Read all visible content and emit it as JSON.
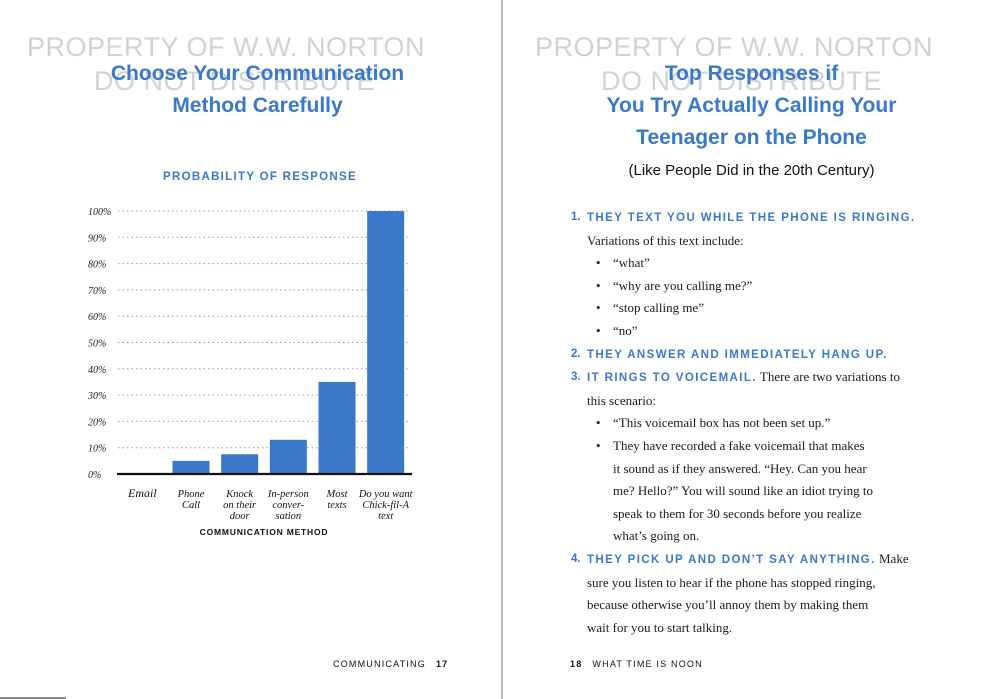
{
  "watermark": {
    "line1": "PROPERTY OF W.W. NORTON",
    "line2": "DO NOT DISTRIBUTE"
  },
  "left_page": {
    "title_line1": "Choose Your Communication",
    "title_line2": "Method Carefully",
    "footer_section": "COMMUNICATING",
    "footer_page": "17"
  },
  "chart_data": {
    "type": "bar",
    "title": "PROBABILITY OF RESPONSE",
    "xlabel": "COMMUNICATION METHOD",
    "ylabel": "",
    "categories": [
      [
        "Email"
      ],
      [
        "Phone",
        "Call"
      ],
      [
        "Knock",
        "on their",
        "door"
      ],
      [
        "In-person",
        "conver-",
        "sation"
      ],
      [
        "Most",
        "texts"
      ],
      [
        "Do you want",
        "Chick-fil-A",
        "text"
      ]
    ],
    "values": [
      0,
      5,
      7.5,
      13,
      35,
      100
    ],
    "ylim": [
      0,
      100
    ],
    "yticks": [
      "0%",
      "10%",
      "20%",
      "30%",
      "40%",
      "50%",
      "60%",
      "70%",
      "80%",
      "90%",
      "100%"
    ],
    "grid": true,
    "bar_color": "#3a78c9"
  },
  "right_page": {
    "title_line1": "Top Responses if",
    "title_line2": "You Try Actually Calling Your",
    "title_line3": "Teenager on the Phone",
    "subtitle": "(Like People Did in the 20th Century)",
    "items": [
      {
        "num": "1.",
        "head": "THEY TEXT YOU WHILE THE PHONE IS RINGING.",
        "lines": [
          "Variations of this text include:"
        ],
        "bullets": [
          [
            "“what”"
          ],
          [
            "“why are you calling me?”"
          ],
          [
            "“stop calling me”"
          ],
          [
            "“no”"
          ]
        ]
      },
      {
        "num": "2.",
        "head": "THEY ANSWER AND IMMEDIATELY HANG UP."
      },
      {
        "num": "3.",
        "head": "IT RINGS TO VOICEMAIL.",
        "tail": " There are two variations to",
        "lines": [
          "this scenario:"
        ],
        "bullets": [
          [
            "“This voicemail box has not been set up.”"
          ],
          [
            "They have recorded a fake voicemail that makes",
            "it sound as if they answered. “Hey. Can you hear",
            "me? Hello?” You will sound like an idiot trying to",
            "speak to them for 30 seconds before you realize",
            "what’s going on."
          ]
        ]
      },
      {
        "num": "4.",
        "head": "THEY PICK UP AND DON’T SAY ANYTHING.",
        "tail": " Make",
        "lines": [
          "sure you listen to hear if the phone has stopped ringing,",
          "because otherwise you’ll annoy them by making them",
          "wait for you to start talking."
        ]
      }
    ],
    "footer_page": "18",
    "footer_section": "WHAT TIME IS NOON"
  }
}
